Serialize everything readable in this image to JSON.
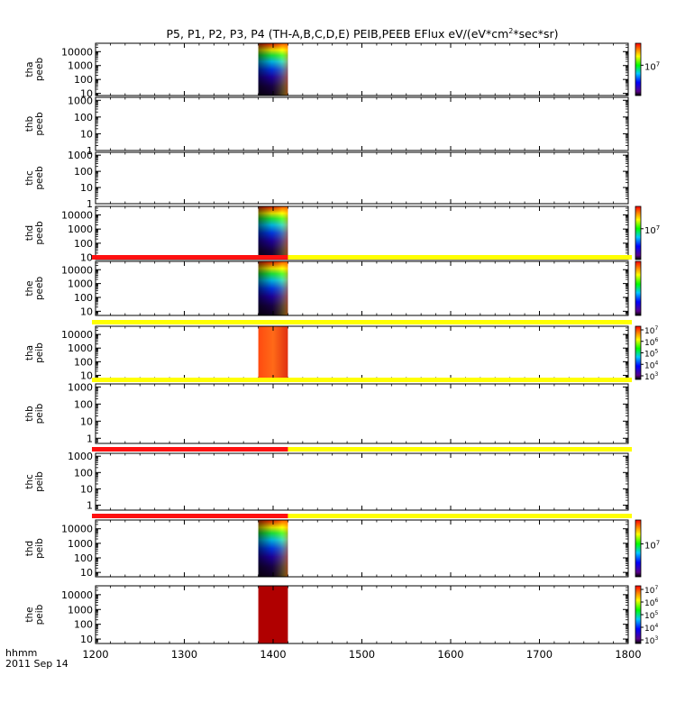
{
  "chart_data": {
    "type": "heatmap",
    "title_parts": [
      "P5, P1, P2, P3, P4 (TH-A,B,C,D,E) PEIB,PEEB EFlux eV/(eV*cm",
      "2",
      "*sec*sr)"
    ],
    "x_axis": {
      "label": "hhmm",
      "date_label": "2011 Sep 14",
      "range": [
        "12:00",
        "18:00"
      ],
      "ticks": [
        "1200",
        "1300",
        "1400",
        "1500",
        "1600",
        "1700",
        "1800"
      ]
    },
    "colorbar": {
      "scale": "log",
      "labels_short": [
        "10",
        "7"
      ],
      "labels_full": [
        [
          "10",
          "7"
        ],
        [
          "10",
          "6"
        ],
        [
          "10",
          "5"
        ],
        [
          "10",
          "4"
        ],
        [
          "10",
          "3"
        ]
      ]
    },
    "panels": [
      {
        "probe": "tha",
        "product": "peeb",
        "ylabel": [
          "tha",
          "peeb"
        ],
        "yscale": "log",
        "ylim": [
          7,
          40000
        ],
        "yticks": [
          "10",
          "100",
          "1000",
          "10000"
        ],
        "data_window": [
          "13:50",
          "14:10"
        ],
        "has_data": true,
        "colorbar": "short",
        "status_bar": null
      },
      {
        "probe": "thb",
        "product": "peeb",
        "ylabel": [
          "thb",
          "peeb"
        ],
        "yscale": "log",
        "ylim": [
          1,
          1500
        ],
        "yticks": [
          "1",
          "10",
          "100",
          "1000"
        ],
        "has_data": false,
        "status_bar": null
      },
      {
        "probe": "thc",
        "product": "peeb",
        "ylabel": [
          "thc",
          "peeb"
        ],
        "yscale": "log",
        "ylim": [
          1,
          1500
        ],
        "yticks": [
          "1",
          "10",
          "100",
          "1000"
        ],
        "has_data": false,
        "status_bar": null
      },
      {
        "probe": "thd",
        "product": "peeb",
        "ylabel": [
          "thd",
          "peeb"
        ],
        "yscale": "log",
        "ylim": [
          7,
          40000
        ],
        "yticks": [
          "10",
          "100",
          "1000",
          "10000"
        ],
        "data_window": [
          "13:50",
          "14:10"
        ],
        "has_data": true,
        "colorbar": "short",
        "status_bar": null
      },
      {
        "probe": "the",
        "product": "peeb",
        "ylabel": [
          "the",
          "peeb"
        ],
        "yscale": "log",
        "ylim": [
          5,
          40000
        ],
        "yticks": [
          "10",
          "100",
          "1000",
          "10000"
        ],
        "data_window": [
          "13:50",
          "14:10"
        ],
        "has_data": true,
        "colorbar": "bar-only",
        "status_bar": {
          "red_until": "14:10",
          "rest": "yellow"
        }
      },
      {
        "probe": "tha",
        "product": "peib",
        "ylabel": [
          "tha",
          "peib"
        ],
        "yscale": "log",
        "ylim": [
          5,
          40000
        ],
        "yticks": [
          "10",
          "100",
          "1000",
          "10000"
        ],
        "data_window": [
          "13:50",
          "14:10"
        ],
        "has_data": true,
        "colorbar": "full",
        "status_bar": {
          "red_until": null,
          "rest": "yellow"
        }
      },
      {
        "probe": "thb",
        "product": "peib",
        "ylabel": [
          "thb",
          "peib"
        ],
        "yscale": "log",
        "ylim": [
          0.5,
          1500
        ],
        "yticks": [
          "1",
          "10",
          "100",
          "1000"
        ],
        "has_data": false,
        "status_bar": {
          "red_until": null,
          "rest": "yellow"
        }
      },
      {
        "probe": "thc",
        "product": "peib",
        "ylabel": [
          "thc",
          "peib"
        ],
        "yscale": "log",
        "ylim": [
          0.5,
          1500
        ],
        "yticks": [
          "1",
          "10",
          "100",
          "1000"
        ],
        "has_data": false,
        "status_bar": {
          "red_until": "14:10",
          "rest": "yellow"
        }
      },
      {
        "probe": "thd",
        "product": "peib",
        "ylabel": [
          "thd",
          "peib"
        ],
        "yscale": "log",
        "ylim": [
          5,
          40000
        ],
        "yticks": [
          "10",
          "100",
          "1000",
          "10000"
        ],
        "data_window": [
          "13:50",
          "14:10"
        ],
        "has_data": true,
        "colorbar": "short",
        "status_bar": {
          "red_until": "14:10",
          "rest": "yellow"
        }
      },
      {
        "probe": "the",
        "product": "peib",
        "ylabel": [
          "the",
          "peib"
        ],
        "yscale": "log",
        "ylim": [
          5,
          40000
        ],
        "yticks": [
          "10",
          "100",
          "1000",
          "10000"
        ],
        "data_window": [
          "13:50",
          "14:10"
        ],
        "has_data": true,
        "colorbar": "full",
        "status_bar": null
      }
    ]
  }
}
